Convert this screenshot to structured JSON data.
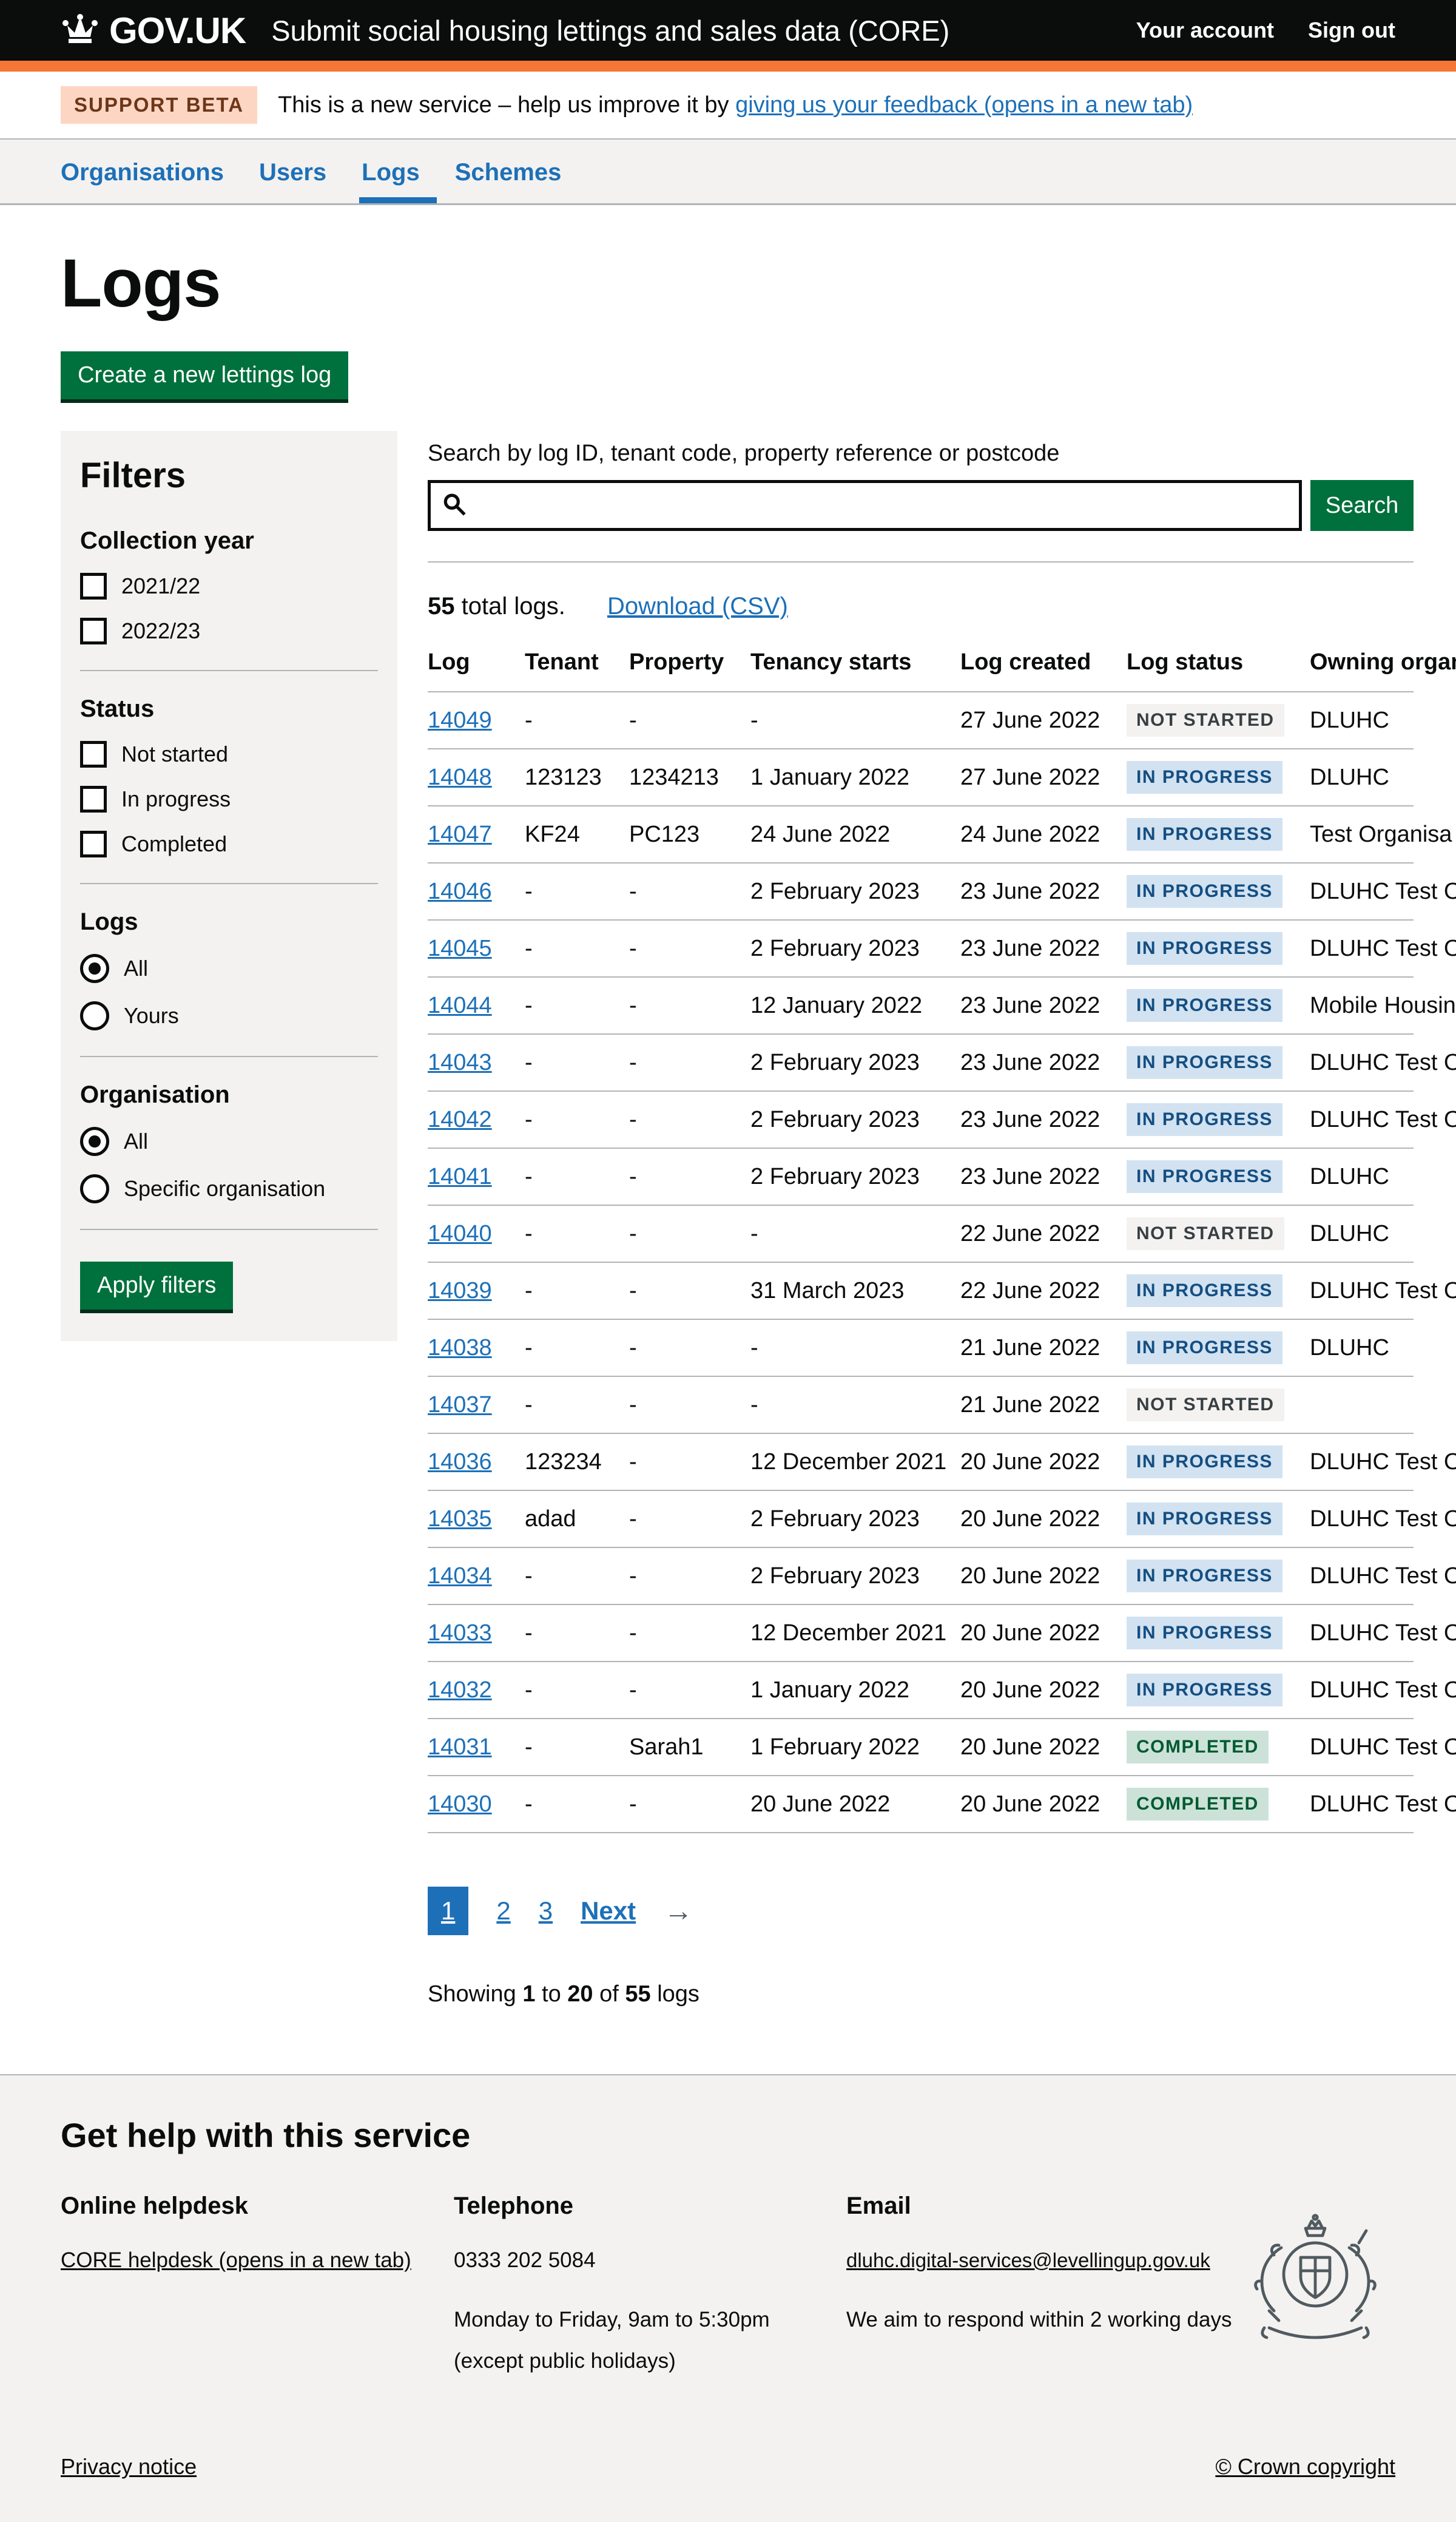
{
  "colors": {
    "header_bg": "#0b0c0c",
    "accent_bar": "#f47738",
    "link_blue": "#1d70b8",
    "button_green": "#00703c",
    "panel_grey": "#f3f2f1",
    "tag_grey_bg": "#f3f2f1",
    "tag_grey_text": "#383f43",
    "tag_blue_bg": "#d2e2f1",
    "tag_blue_text": "#144e81",
    "tag_green_bg": "#cce2d8",
    "tag_green_text": "#005a30"
  },
  "header": {
    "logo_text": "GOV.UK",
    "crown_icon": "crown-icon",
    "service_name": "Submit social housing lettings and sales data (CORE)",
    "account_link": "Your account",
    "signout_link": "Sign out"
  },
  "phase_banner": {
    "tag": "SUPPORT BETA",
    "text": "This is a new service – help us improve it by ",
    "link": "giving us your feedback (opens in a new tab)"
  },
  "nav": {
    "items": [
      {
        "label": "Organisations",
        "active": false
      },
      {
        "label": "Users",
        "active": false
      },
      {
        "label": "Logs",
        "active": true
      },
      {
        "label": "Schemes",
        "active": false
      }
    ]
  },
  "page": {
    "title": "Logs",
    "create_button": "Create a new lettings log"
  },
  "filters": {
    "title": "Filters",
    "collection_year": {
      "label": "Collection year",
      "options": [
        {
          "label": "2021/22",
          "checked": false
        },
        {
          "label": "2022/23",
          "checked": false
        }
      ]
    },
    "status": {
      "label": "Status",
      "options": [
        {
          "label": "Not started",
          "checked": false
        },
        {
          "label": "In progress",
          "checked": false
        },
        {
          "label": "Completed",
          "checked": false
        }
      ]
    },
    "logs": {
      "label": "Logs",
      "options": [
        {
          "label": "All",
          "selected": true
        },
        {
          "label": "Yours",
          "selected": false
        }
      ]
    },
    "organisation": {
      "label": "Organisation",
      "options": [
        {
          "label": "All",
          "selected": true
        },
        {
          "label": "Specific organisation",
          "selected": false
        }
      ]
    },
    "apply_button": "Apply filters"
  },
  "search": {
    "label": "Search by log ID, tenant code, property reference or postcode",
    "value": "",
    "button": "Search",
    "icon": "search-icon"
  },
  "results": {
    "total": "55",
    "total_suffix": " total logs.",
    "download_link": "Download (CSV)"
  },
  "table": {
    "columns": [
      "Log",
      "Tenant",
      "Property",
      "Tenancy starts",
      "Log created",
      "Log status",
      "Owning organisation"
    ],
    "rows": [
      {
        "log": "14049",
        "tenant": "-",
        "property": "-",
        "tenancy_starts": "-",
        "log_created": "27 June 2022",
        "status": "NOT STARTED",
        "owning_org": "DLUHC"
      },
      {
        "log": "14048",
        "tenant": "123123",
        "property": "1234213",
        "tenancy_starts": "1 January 2022",
        "log_created": "27 June 2022",
        "status": "IN PROGRESS",
        "owning_org": "DLUHC"
      },
      {
        "log": "14047",
        "tenant": "KF24",
        "property": "PC123",
        "tenancy_starts": "24 June 2022",
        "log_created": "24 June 2022",
        "status": "IN PROGRESS",
        "owning_org": "Test Organisa"
      },
      {
        "log": "14046",
        "tenant": "-",
        "property": "-",
        "tenancy_starts": "2 February 2023",
        "log_created": "23 June 2022",
        "status": "IN PROGRESS",
        "owning_org": "DLUHC Test Org"
      },
      {
        "log": "14045",
        "tenant": "-",
        "property": "-",
        "tenancy_starts": "2 February 2023",
        "log_created": "23 June 2022",
        "status": "IN PROGRESS",
        "owning_org": "DLUHC Test Org"
      },
      {
        "log": "14044",
        "tenant": "-",
        "property": "-",
        "tenancy_starts": "12 January 2022",
        "log_created": "23 June 2022",
        "status": "IN PROGRESS",
        "owning_org": "Mobile Housing"
      },
      {
        "log": "14043",
        "tenant": "-",
        "property": "-",
        "tenancy_starts": "2 February 2023",
        "log_created": "23 June 2022",
        "status": "IN PROGRESS",
        "owning_org": "DLUHC Test Org"
      },
      {
        "log": "14042",
        "tenant": "-",
        "property": "-",
        "tenancy_starts": "2 February 2023",
        "log_created": "23 June 2022",
        "status": "IN PROGRESS",
        "owning_org": "DLUHC Test Org"
      },
      {
        "log": "14041",
        "tenant": "-",
        "property": "-",
        "tenancy_starts": "2 February 2023",
        "log_created": "23 June 2022",
        "status": "IN PROGRESS",
        "owning_org": "DLUHC"
      },
      {
        "log": "14040",
        "tenant": "-",
        "property": "-",
        "tenancy_starts": "-",
        "log_created": "22 June 2022",
        "status": "NOT STARTED",
        "owning_org": "DLUHC"
      },
      {
        "log": "14039",
        "tenant": "-",
        "property": "-",
        "tenancy_starts": "31 March 2023",
        "log_created": "22 June 2022",
        "status": "IN PROGRESS",
        "owning_org": "DLUHC Test Org"
      },
      {
        "log": "14038",
        "tenant": "-",
        "property": "-",
        "tenancy_starts": "-",
        "log_created": "21 June 2022",
        "status": "IN PROGRESS",
        "owning_org": "DLUHC"
      },
      {
        "log": "14037",
        "tenant": "-",
        "property": "-",
        "tenancy_starts": "-",
        "log_created": "21 June 2022",
        "status": "NOT STARTED",
        "owning_org": ""
      },
      {
        "log": "14036",
        "tenant": "123234",
        "property": "-",
        "tenancy_starts": "12 December 2021",
        "log_created": "20 June 2022",
        "status": "IN PROGRESS",
        "owning_org": "DLUHC Test Org"
      },
      {
        "log": "14035",
        "tenant": "adad",
        "property": "-",
        "tenancy_starts": "2 February 2023",
        "log_created": "20 June 2022",
        "status": "IN PROGRESS",
        "owning_org": "DLUHC Test Org"
      },
      {
        "log": "14034",
        "tenant": "-",
        "property": "-",
        "tenancy_starts": "2 February 2023",
        "log_created": "20 June 2022",
        "status": "IN PROGRESS",
        "owning_org": "DLUHC Test Org"
      },
      {
        "log": "14033",
        "tenant": "-",
        "property": "-",
        "tenancy_starts": "12 December 2021",
        "log_created": "20 June 2022",
        "status": "IN PROGRESS",
        "owning_org": "DLUHC Test Org"
      },
      {
        "log": "14032",
        "tenant": "-",
        "property": "-",
        "tenancy_starts": "1 January 2022",
        "log_created": "20 June 2022",
        "status": "IN PROGRESS",
        "owning_org": "DLUHC Test Org"
      },
      {
        "log": "14031",
        "tenant": "-",
        "property": "Sarah1",
        "tenancy_starts": "1 February 2022",
        "log_created": "20 June 2022",
        "status": "COMPLETED",
        "owning_org": "DLUHC Test Org"
      },
      {
        "log": "14030",
        "tenant": "-",
        "property": "-",
        "tenancy_starts": "20 June 2022",
        "log_created": "20 June 2022",
        "status": "COMPLETED",
        "owning_org": "DLUHC Test Org"
      }
    ]
  },
  "pagination": {
    "pages": [
      "1",
      "2",
      "3"
    ],
    "current": "1",
    "next_label": "Next",
    "arrow_icon": "→"
  },
  "showing": {
    "prefix": "Showing ",
    "from": "1",
    "mid1": " to ",
    "to": "20",
    "mid2": " of ",
    "total": "55",
    "suffix": " logs"
  },
  "footer": {
    "heading": "Get help with this service",
    "helpdesk": {
      "heading": "Online helpdesk",
      "link": "CORE helpdesk (opens in a new tab)"
    },
    "telephone": {
      "heading": "Telephone",
      "number": "0333 202 5084",
      "line1": "Monday to Friday, 9am to 5:30pm",
      "line2": "(except public holidays)"
    },
    "email": {
      "heading": "Email",
      "link": "dluhc.digital-services@levellingup.gov.uk",
      "line1": "We aim to respond within 2 working days"
    },
    "arms_icon": "royal-coat-of-arms",
    "privacy_link": "Privacy notice",
    "copyright": "© Crown copyright"
  }
}
